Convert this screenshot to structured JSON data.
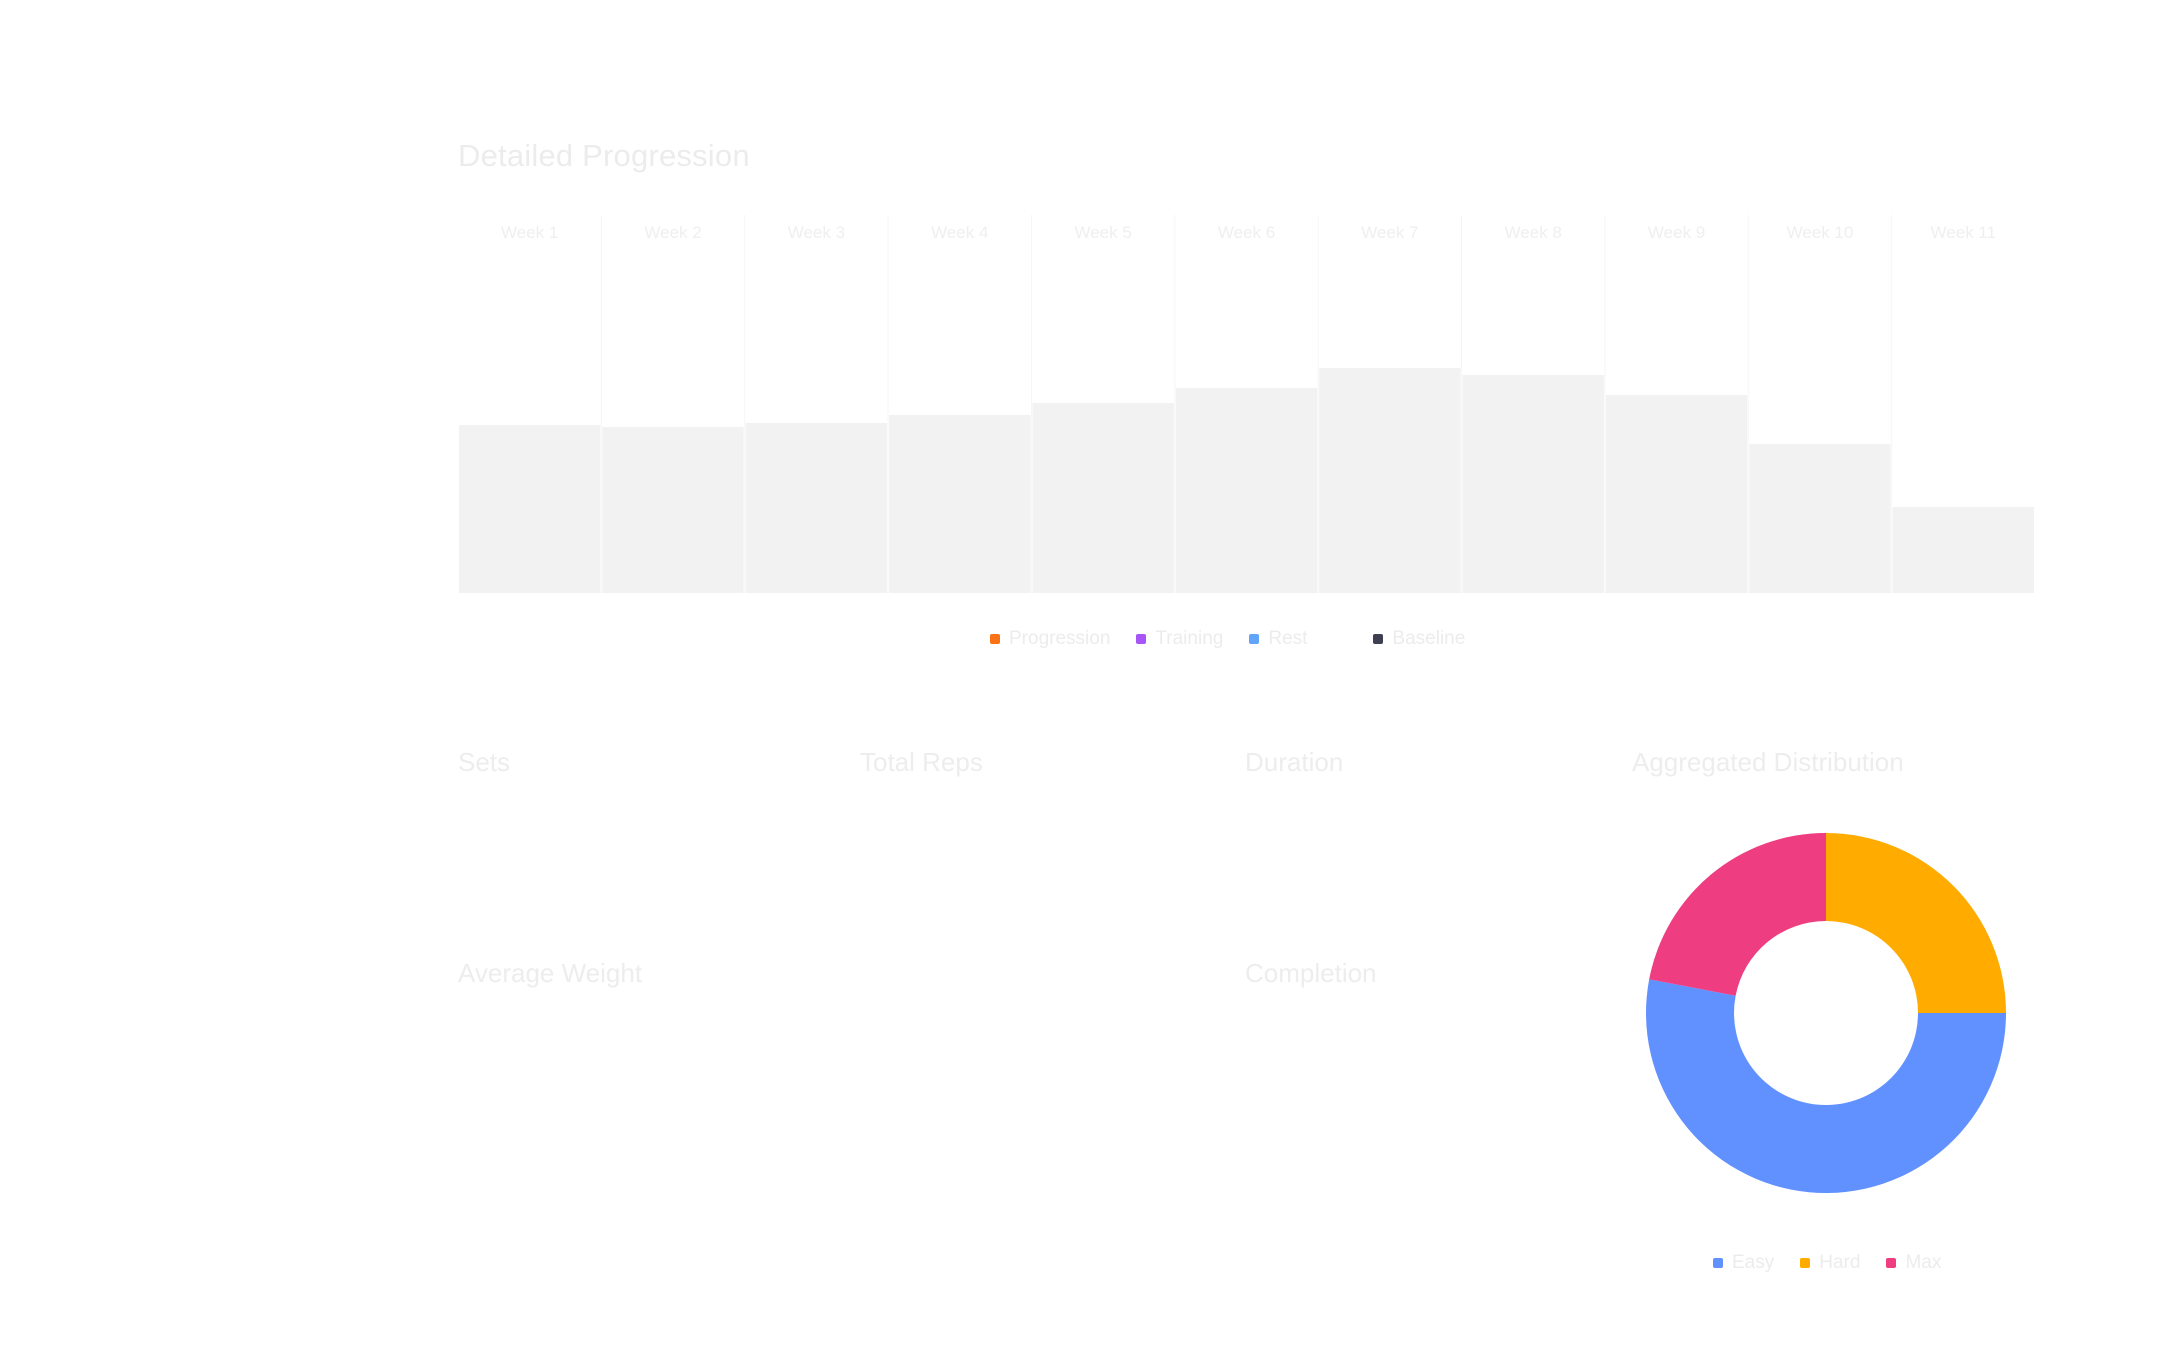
{
  "page_title": "Detailed Progression",
  "chart_data": [
    {
      "type": "bar",
      "title": "Detailed Progression",
      "categories": [
        "Week 1",
        "Week 2",
        "Week 3",
        "Week 4",
        "Week 5",
        "Week 6",
        "Week 7",
        "Week 8",
        "Week 9",
        "Week 10",
        "Week 11"
      ],
      "series": [
        {
          "name": "Progression",
          "color": "#f97316",
          "values": [
            0,
            0,
            0,
            0,
            0,
            0,
            0,
            0,
            0,
            0,
            0
          ]
        },
        {
          "name": "Training",
          "color": "#a855f7",
          "values": [
            0,
            0,
            0,
            0,
            0,
            0,
            0,
            0,
            0,
            0,
            0
          ]
        },
        {
          "name": "Rest",
          "color": "#60a5fa",
          "values": [
            0,
            0,
            0,
            0,
            0,
            0,
            0,
            0,
            0,
            0,
            0
          ]
        },
        {
          "name": "Baseline",
          "color": "#f2f2f2",
          "values": [
            168,
            166,
            170,
            178,
            190,
            205,
            225,
            218,
            198,
            149,
            86
          ]
        }
      ],
      "ylim": [
        0,
        380
      ],
      "legend_position": "bottom-center",
      "grid": false
    },
    {
      "type": "pie",
      "title": "Aggregated Distribution",
      "donut": true,
      "slices": [
        {
          "label": "Easy",
          "value": 53,
          "color": "#6190ff"
        },
        {
          "label": "Hard",
          "value": 25,
          "color": "#ffab00"
        },
        {
          "label": "Max",
          "value": 22,
          "color": "#ee3d81"
        }
      ],
      "legend_position": "bottom-center"
    }
  ],
  "stats": {
    "sets": "Sets",
    "total_reps": "Total Reps",
    "duration": "Duration",
    "aggregated": "Aggregated Distribution",
    "avg_weight": "Average Weight",
    "completed": "Completion"
  },
  "bar_legend": [
    "Progression",
    "Training",
    "Rest",
    "Baseline"
  ],
  "donut_legend": [
    "Easy",
    "Hard",
    "Max"
  ]
}
